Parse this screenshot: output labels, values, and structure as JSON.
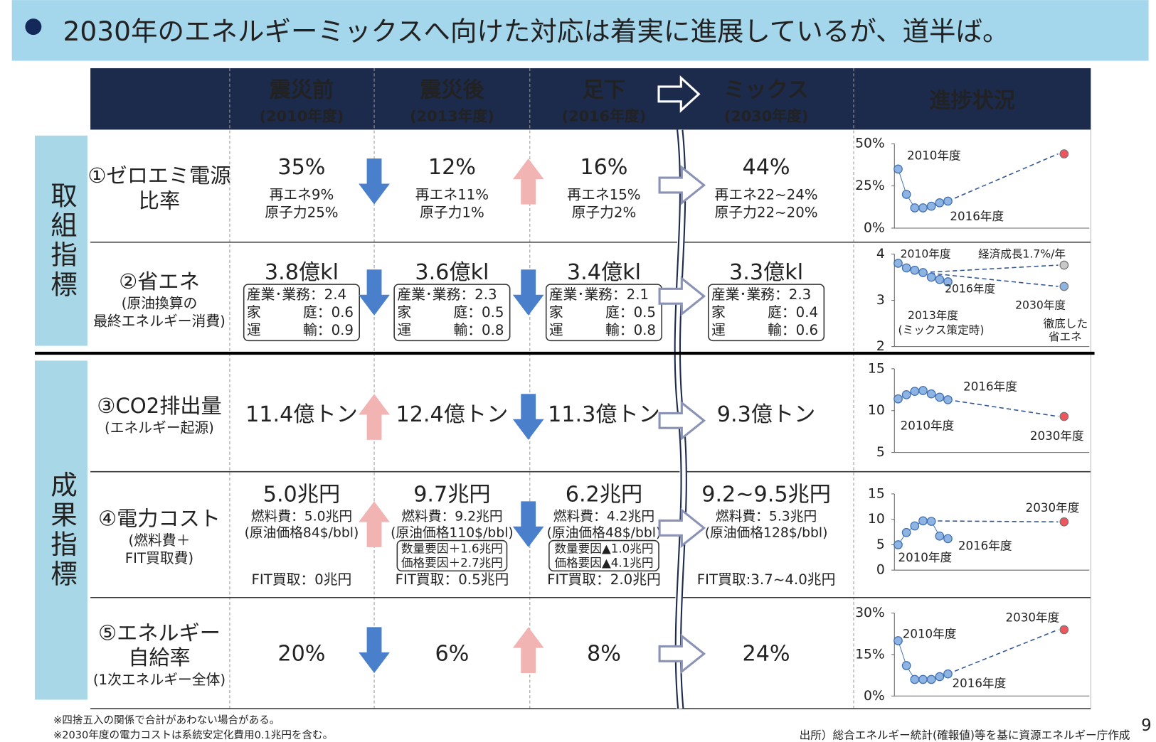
{
  "header": {
    "title": "2030年のエネルギーミックスへ向けた対応は着実に進展しているが、道半ば。"
  },
  "table": {
    "header": {
      "columns": [
        {
          "title": "震災前",
          "period": "(2010年度)"
        },
        {
          "title": "震災後",
          "period": "(2013年度)"
        },
        {
          "title": "足下",
          "period": "(2016年度)"
        },
        {
          "title": "ミックス",
          "period": "(2030年度)"
        }
      ],
      "progress": "進捗状況"
    },
    "groups": [
      "取組指標",
      "成果指標"
    ],
    "rows": [
      {
        "label": [
          "①ゼロエミ電源",
          "比率"
        ],
        "note": [],
        "arrows": [
          "down",
          "up",
          "right"
        ],
        "cells": [
          {
            "main": "35%",
            "lines": [
              "再エネ9%",
              "原子力25%"
            ]
          },
          {
            "main": "12%",
            "lines": [
              "再エネ11%",
              "原子力1%"
            ]
          },
          {
            "main": "16%",
            "lines": [
              "再エネ15%",
              "原子力2%"
            ]
          },
          {
            "main": "44%",
            "lines": [
              "再エネ22~24%",
              "原子力22~20%"
            ]
          }
        ],
        "chart": {
          "ylim": [
            0,
            50
          ],
          "yticks": [
            {
              "value": 50,
              "label": "50%"
            },
            {
              "value": 25,
              "label": "25%"
            },
            {
              "value": 0,
              "label": "0%"
            }
          ],
          "x": [
            2010,
            2011,
            2012,
            2013,
            2014,
            2015,
            2016
          ],
          "values": [
            35,
            20,
            12,
            12,
            13,
            15,
            16
          ],
          "target_x": 2030,
          "dash_from": 6,
          "targets": [
            {
              "value": 44,
              "color": "#f0545c"
            }
          ],
          "annotations": [
            "2010年度",
            "2016年度"
          ]
        }
      },
      {
        "label": [
          "②省エネ"
        ],
        "note": [
          "(原油換算の",
          "最終エネルギー消費)"
        ],
        "arrows": [
          "down",
          "down",
          "right"
        ],
        "cells": [
          {
            "main": "3.8億kl",
            "box": [
              "産業･業務：2.4",
              "家　　　庭：0.6",
              "運　　　輸：0.9"
            ]
          },
          {
            "main": "3.6億kl",
            "box": [
              "産業･業務：2.3",
              "家　　　庭：0.5",
              "運　　　輸：0.8"
            ]
          },
          {
            "main": "3.4億kl",
            "box": [
              "産業･業務：2.1",
              "家　　　庭：0.5",
              "運　　　輸：0.8"
            ]
          },
          {
            "main": "3.3億kl",
            "box": [
              "産業･業務：2.3",
              "家　　　庭：0.4",
              "運　　　輸：0.6"
            ]
          }
        ],
        "chart": {
          "ylim": [
            2,
            4
          ],
          "yticks": [
            4,
            3,
            2
          ],
          "x": [
            2010,
            2011,
            2012,
            2013,
            2014,
            2015,
            2016
          ],
          "values": [
            3.8,
            3.7,
            3.65,
            3.6,
            3.5,
            3.45,
            3.4
          ],
          "target_x": 2030,
          "dash_from": 3,
          "targets": [
            {
              "value": 3.76,
              "color": "#c8c8c8"
            },
            {
              "value": 3.3,
              "color": "#8eb4e3"
            }
          ],
          "annotations": [
            "2010年度",
            "経済成長1.7%/年",
            "2016年度",
            "2030年度",
            "2013年度",
            "(ミックス策定時)",
            "徹底した",
            "省エネ"
          ]
        }
      },
      {
        "label": [
          "③CO2排出量"
        ],
        "note": [
          "(エネルギー起源)"
        ],
        "arrows": [
          "up",
          "down",
          "right"
        ],
        "cells": [
          {
            "main": "11.4億トン"
          },
          {
            "main": "12.4億トン"
          },
          {
            "main": "11.3億トン"
          },
          {
            "main": "9.3億トン"
          }
        ],
        "chart": {
          "ylim": [
            5,
            15
          ],
          "yticks": [
            15,
            10,
            5
          ],
          "x": [
            2010,
            2011,
            2012,
            2013,
            2014,
            2015,
            2016
          ],
          "values": [
            11.4,
            11.9,
            12.3,
            12.4,
            12.0,
            11.6,
            11.3
          ],
          "target_x": 2030,
          "dash_from": 6,
          "targets": [
            {
              "value": 9.3,
              "color": "#f0545c"
            }
          ],
          "annotations": [
            "2016年度",
            "2010年度",
            "2030年度"
          ]
        }
      },
      {
        "label": [
          "④電力コスト"
        ],
        "note": [
          "(燃料費＋",
          "FIT買取費)"
        ],
        "arrows": [
          "up",
          "down",
          "right"
        ],
        "cells": [
          {
            "main": "5.0兆円",
            "lines": [
              "燃料費：5.0兆円",
              "(原油価格84$/bbl)"
            ],
            "foot": "FIT買取：0兆円"
          },
          {
            "main": "9.7兆円",
            "lines": [
              "燃料費：9.2兆円",
              "(原油価格110$/bbl)"
            ],
            "box": [
              "数量要因＋1.6兆円",
              "価格要因＋2.7兆円"
            ],
            "foot": "FIT買取：0.5兆円"
          },
          {
            "main": "6.2兆円",
            "lines": [
              "燃料費：4.2兆円",
              "(原油価格48$/bbl)"
            ],
            "box": [
              "数量要因▲1.0兆円",
              "価格要因▲4.1兆円"
            ],
            "foot": "FIT買取：2.0兆円"
          },
          {
            "main": "9.2~9.5兆円",
            "lines": [
              "燃料費：5.3兆円",
              "(原油価格128$/bbl)"
            ],
            "foot": "FIT買取:3.7~4.0兆円"
          }
        ],
        "chart": {
          "ylim": [
            0,
            15
          ],
          "yticks": [
            15,
            10,
            5,
            0
          ],
          "x": [
            2010,
            2011,
            2012,
            2013,
            2014,
            2015,
            2016
          ],
          "values": [
            5.0,
            7.4,
            8.7,
            9.7,
            9.6,
            6.7,
            6.2
          ],
          "target_x": 2030,
          "dash_from": 3,
          "targets": [
            {
              "value": 9.5,
              "color": "#f0545c"
            }
          ],
          "annotations": [
            "2030年度",
            "2016年度",
            "2010年度"
          ]
        }
      },
      {
        "label": [
          "⑤エネルギー",
          "自給率"
        ],
        "note": [
          "(1次エネルギー全体)"
        ],
        "arrows": [
          "down",
          "up",
          "right"
        ],
        "cells": [
          {
            "main": "20%"
          },
          {
            "main": "6%"
          },
          {
            "main": "8%"
          },
          {
            "main": "24%"
          }
        ],
        "chart": {
          "ylim": [
            0,
            30
          ],
          "yticks": [
            {
              "value": 30,
              "label": "30%"
            },
            {
              "value": 15,
              "label": "15%"
            },
            {
              "value": 0,
              "label": "0%"
            }
          ],
          "x": [
            2010,
            2011,
            2012,
            2013,
            2014,
            2015,
            2016
          ],
          "values": [
            20,
            11,
            6,
            6,
            6,
            7,
            8
          ],
          "target_x": 2030,
          "dash_from": 6,
          "targets": [
            {
              "value": 24,
              "color": "#f0545c"
            }
          ],
          "annotations": [
            "2030年度",
            "2010年度",
            "2016年度"
          ]
        }
      }
    ]
  },
  "footnotes": [
    "※四捨五入の関係で合計があわない場合がある。",
    "※2030年度の電力コストは系統安定化費用0.1兆円を含む。"
  ],
  "source": "出所）総合エネルギー統計(確報値)等を基に資源エネルギー庁作成",
  "page": "9"
}
